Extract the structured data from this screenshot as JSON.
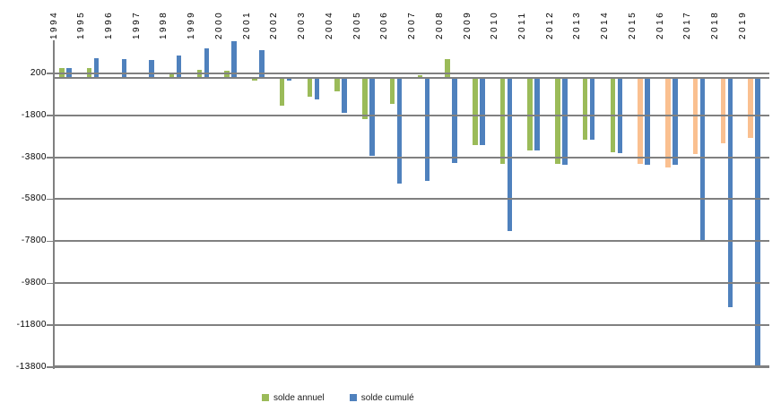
{
  "chart_data": {
    "type": "bar",
    "title": "",
    "xlabel": "",
    "ylabel": "",
    "categories": [
      "1994",
      "1995",
      "1996",
      "1997",
      "1998",
      "1999",
      "2000",
      "2001",
      "2002",
      "2003",
      "2004",
      "2005",
      "2006",
      "2007",
      "2008",
      "2009",
      "2010",
      "2011",
      "2012",
      "2013",
      "2014",
      "2015",
      "2016",
      "2017",
      "2018",
      "2019"
    ],
    "series": [
      {
        "name": "solde annuel",
        "color": "#9BBB59",
        "values": [
          450,
          450,
          0,
          -50,
          250,
          360,
          340,
          -130,
          -1350,
          -920,
          -670,
          -2000,
          -1270,
          100,
          860,
          -3220,
          -4120,
          -3490,
          -4120,
          -2980,
          -3570,
          -4100,
          -4300,
          -3660,
          -3140,
          -2900
        ],
        "colors": [
          "#9BBB59",
          "#9BBB59",
          "#9BBB59",
          "#9BBB59",
          "#9BBB59",
          "#9BBB59",
          "#9BBB59",
          "#9BBB59",
          "#9BBB59",
          "#9BBB59",
          "#9BBB59",
          "#9BBB59",
          "#9BBB59",
          "#9BBB59",
          "#9BBB59",
          "#9BBB59",
          "#9BBB59",
          "#9BBB59",
          "#9BBB59",
          "#9BBB59",
          "#9BBB59",
          "#FAC090",
          "#FAC090",
          "#FAC090",
          "#FAC090",
          "#FAC090"
        ]
      },
      {
        "name": "solde cumulé",
        "color": "#4F81BD",
        "values": [
          450,
          900,
          880,
          820,
          1030,
          1390,
          1720,
          1300,
          -140,
          -1060,
          -1700,
          -3750,
          -5070,
          -4950,
          -4090,
          -3220,
          -7320,
          -3480,
          -4160,
          -2950,
          -3610,
          -4170,
          -4160,
          -7820,
          -10960,
          -13750
        ]
      }
    ],
    "yticks": [
      200,
      -1800,
      -3800,
      -5800,
      -7800,
      -9800,
      -11800,
      -13800
    ],
    "ytick_labels": [
      "200",
      "-1800",
      "-3800",
      "-5800",
      "-7800",
      "-9800",
      "-11800",
      "-13800"
    ],
    "ylim": [
      -13900,
      300
    ],
    "grid": "horizontal",
    "legend_position": "bottom",
    "x_label_rotation": -90
  },
  "legend": {
    "items": [
      {
        "label": "solde annuel",
        "color": "#9BBB59"
      },
      {
        "label": "solde cumulé",
        "color": "#4F81BD"
      }
    ]
  },
  "colors": {
    "annual": "#9BBB59",
    "annual_recent": "#FAC090",
    "cumulative": "#4F81BD",
    "gridline": "#808080",
    "text": "#000000",
    "background": "#ffffff"
  }
}
